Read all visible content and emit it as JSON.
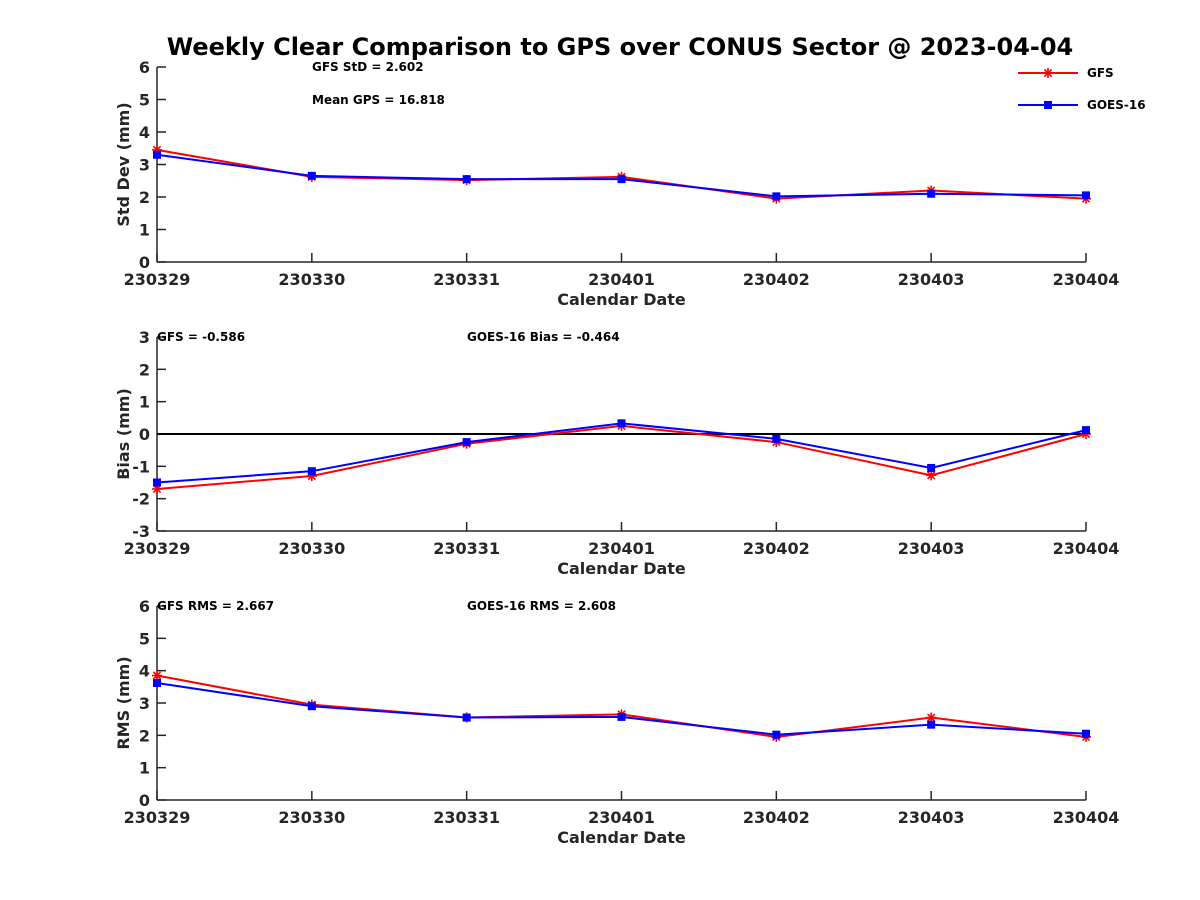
{
  "chart_data": {
    "type": "line",
    "title": "Weekly Clear Comparison to GPS over CONUS Sector @ 2023-04-04",
    "categories": [
      "230329",
      "230330",
      "230331",
      "230401",
      "230402",
      "230403",
      "230404"
    ],
    "legend": {
      "placement": "top-right",
      "entries": [
        {
          "name": "GFS",
          "color": "#ff0000",
          "marker": "asterisk"
        },
        {
          "name": "GOES-16",
          "color": "#0000ff",
          "marker": "square"
        }
      ]
    },
    "panels": [
      {
        "id": "std",
        "xlabel": "Calendar Date",
        "ylabel": "Std Dev (mm)",
        "ylim": [
          0,
          6
        ],
        "yticks": [
          "0",
          "1",
          "2",
          "3",
          "4",
          "5",
          "6"
        ],
        "annotations": [
          "GFS StD = 2.602",
          "Mean GPS = 16.818"
        ],
        "series": [
          {
            "name": "GFS",
            "values": [
              3.45,
              2.62,
              2.52,
              2.62,
              1.95,
              2.2,
              1.95
            ]
          },
          {
            "name": "GOES-16",
            "values": [
              3.3,
              2.65,
              2.55,
              2.55,
              2.02,
              2.1,
              2.05
            ]
          }
        ]
      },
      {
        "id": "bias",
        "xlabel": "Calendar Date",
        "ylabel": "Bias (mm)",
        "ylim": [
          -3,
          3
        ],
        "yticks": [
          "-3",
          "-2",
          "-1",
          "0",
          "1",
          "2",
          "3"
        ],
        "zero_line": true,
        "annotations": [
          "GFS = -0.586",
          "GOES-16 Bias  = -0.464"
        ],
        "series": [
          {
            "name": "GFS",
            "values": [
              -1.7,
              -1.3,
              -0.3,
              0.25,
              -0.25,
              -1.28,
              0.0
            ]
          },
          {
            "name": "GOES-16",
            "values": [
              -1.5,
              -1.15,
              -0.25,
              0.33,
              -0.15,
              -1.05,
              0.12
            ]
          }
        ]
      },
      {
        "id": "rms",
        "xlabel": "Calendar Date",
        "ylabel": "RMS (mm)",
        "ylim": [
          0,
          6
        ],
        "yticks": [
          "0",
          "1",
          "2",
          "3",
          "4",
          "5",
          "6"
        ],
        "annotations": [
          "GFS RMS = 2.667",
          "GOES-16 RMS = 2.608"
        ],
        "series": [
          {
            "name": "GFS",
            "values": [
              3.85,
              2.95,
              2.55,
              2.65,
              1.95,
              2.55,
              1.95
            ]
          },
          {
            "name": "GOES-16",
            "values": [
              3.62,
              2.9,
              2.55,
              2.57,
              2.02,
              2.33,
              2.05
            ]
          }
        ]
      }
    ]
  }
}
